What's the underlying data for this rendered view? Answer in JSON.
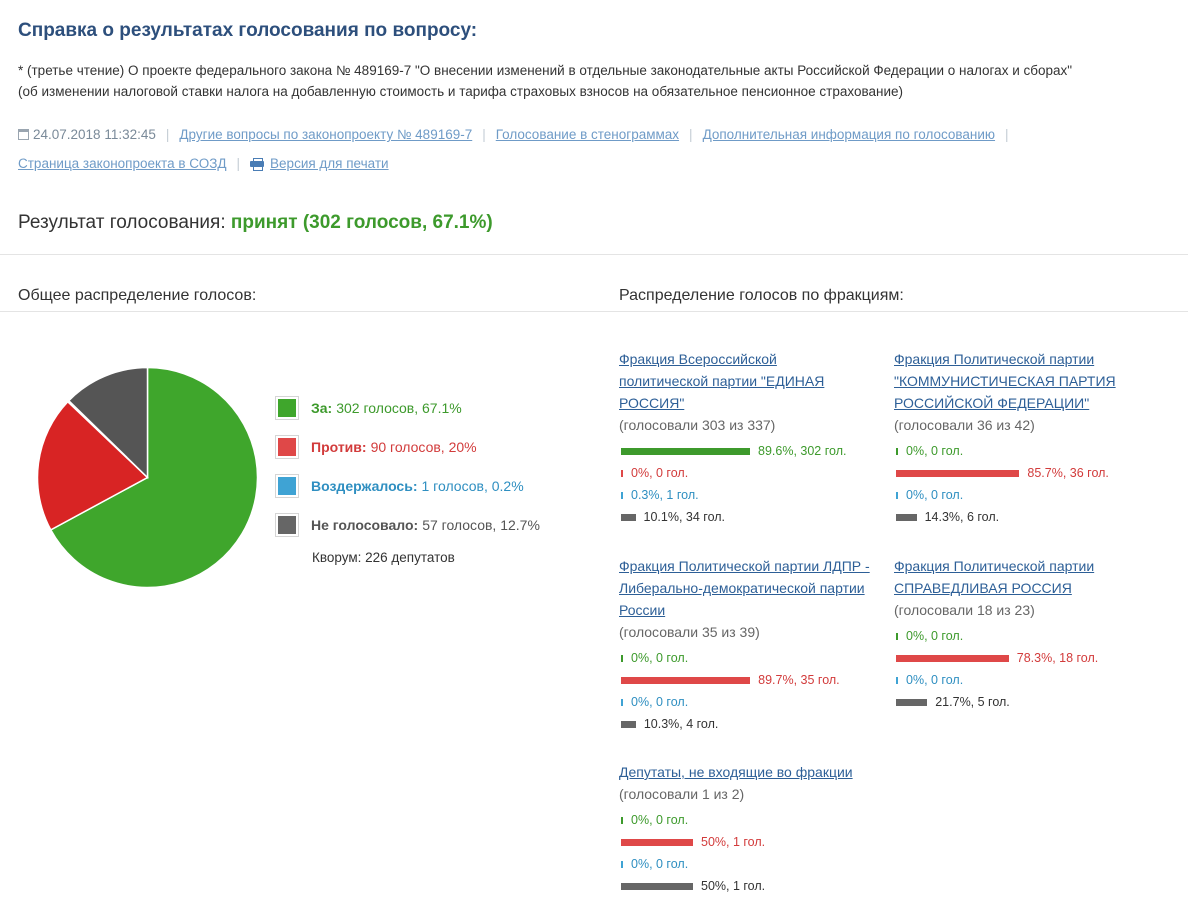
{
  "header": {
    "title": "Справка о результатах голосования по вопросу:",
    "question_line1": "* (третье чтение) О проекте федерального закона № 489169-7 \"О внесении изменений в отдельные законодательные акты Российской Федерации о налогах и сборах\"",
    "question_line2": "(об изменении налоговой ставки налога на добавленную стоимость и тарифа страховых взносов на обязательное пенсионное страхование)"
  },
  "meta": {
    "datetime": "24.07.2018 11:32:45",
    "links": {
      "other_questions": "Другие вопросы по законопроекту № 489169-7",
      "transcripts": "Голосование в стенограммах",
      "additional_info": "Дополнительная информация по голосованию",
      "sozd_page": "Страница законопроекта в СОЗД",
      "print_version": "Версия для печати"
    }
  },
  "result": {
    "label": "Результат голосования:",
    "value": "принят (302 голосов, 67.1%)"
  },
  "overall": {
    "title": "Общее распределение голосов:",
    "legend": [
      {
        "label": "За:",
        "text": "302 голосов, 67.1%",
        "color": "#3d9a2c"
      },
      {
        "label": "Против:",
        "text": "90 голосов, 20%",
        "color": "#d23b3b"
      },
      {
        "label": "Воздержалось:",
        "text": "1 голосов, 0.2%",
        "color": "#2f8fc1"
      },
      {
        "label": "Не голосовало:",
        "text": "57 голосов, 12.7%",
        "color": "#555555"
      }
    ],
    "quorum": "Кворум: 226 депутатов"
  },
  "chart_data": {
    "type": "pie",
    "categories": [
      "За",
      "Против",
      "Воздержалось",
      "Не голосовало"
    ],
    "values": [
      67.1,
      20,
      0.2,
      12.7
    ],
    "colors": [
      "#3fa62c",
      "#d82424",
      "#3fa3d4",
      "#555555"
    ]
  },
  "fractions": {
    "title": "Распределение голосов по фракциям:",
    "items": [
      {
        "name": "Фракция Всероссийской политической партии \"ЕДИНАЯ РОССИЯ\"",
        "voted": "(голосовали 303 из 337)",
        "rows": [
          {
            "kind": "for",
            "pct": 89.6,
            "text": "89.6%, 302 гол."
          },
          {
            "kind": "against",
            "pct": 0,
            "text": "0%, 0 гол."
          },
          {
            "kind": "abst",
            "pct": 0.3,
            "text": "0.3%, 1 гол."
          },
          {
            "kind": "none",
            "pct": 10.1,
            "text": "10.1%, 34 гол."
          }
        ]
      },
      {
        "name": "Фракция Политической партии \"КОММУНИСТИЧЕСКАЯ ПАРТИЯ РОССИЙСКОЙ ФЕДЕРАЦИИ\"",
        "voted": "(голосовали 36 из 42)",
        "rows": [
          {
            "kind": "for",
            "pct": 0,
            "text": "0%, 0 гол."
          },
          {
            "kind": "against",
            "pct": 85.7,
            "text": "85.7%, 36 гол."
          },
          {
            "kind": "abst",
            "pct": 0,
            "text": "0%, 0 гол."
          },
          {
            "kind": "none",
            "pct": 14.3,
            "text": "14.3%, 6 гол."
          }
        ]
      },
      {
        "name": "Фракция Политической партии ЛДПР - Либерально-демократической партии России",
        "voted": "(голосовали 35 из 39)",
        "rows": [
          {
            "kind": "for",
            "pct": 0,
            "text": "0%, 0 гол."
          },
          {
            "kind": "against",
            "pct": 89.7,
            "text": "89.7%, 35 гол."
          },
          {
            "kind": "abst",
            "pct": 0,
            "text": "0%, 0 гол."
          },
          {
            "kind": "none",
            "pct": 10.3,
            "text": "10.3%, 4 гол."
          }
        ]
      },
      {
        "name": "Фракция Политической партии СПРАВЕДЛИВАЯ РОССИЯ",
        "voted": "(голосовали 18 из 23)",
        "rows": [
          {
            "kind": "for",
            "pct": 0,
            "text": "0%, 0 гол."
          },
          {
            "kind": "against",
            "pct": 78.3,
            "text": "78.3%, 18 гол."
          },
          {
            "kind": "abst",
            "pct": 0,
            "text": "0%, 0 гол."
          },
          {
            "kind": "none",
            "pct": 21.7,
            "text": "21.7%, 5 гол."
          }
        ]
      },
      {
        "name": "Депутаты, не входящие во фракции",
        "voted": "(голосовали 1 из 2)",
        "rows": [
          {
            "kind": "for",
            "pct": 0,
            "text": "0%, 0 гол."
          },
          {
            "kind": "against",
            "pct": 50,
            "text": "50%, 1 гол."
          },
          {
            "kind": "abst",
            "pct": 0,
            "text": "0%, 0 гол."
          },
          {
            "kind": "none",
            "pct": 50,
            "text": "50%, 1 гол."
          }
        ]
      }
    ]
  }
}
